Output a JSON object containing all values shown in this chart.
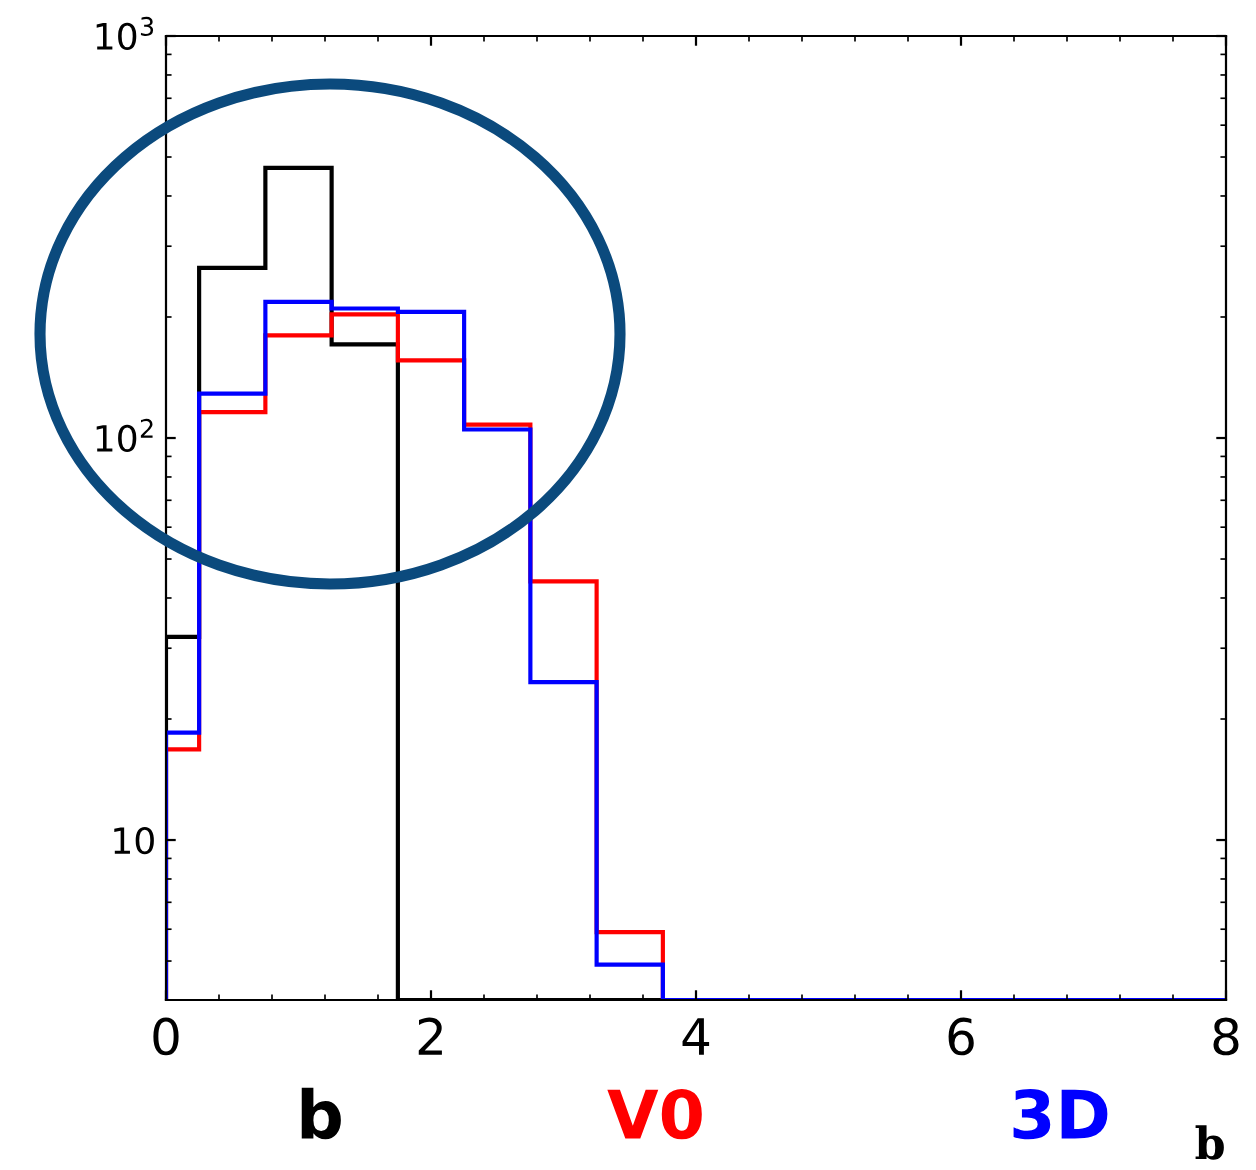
{
  "chart_data": {
    "type": "histogram",
    "xlabel": "b",
    "log": "y",
    "bins": [
      0,
      0.25,
      0.75,
      1.25,
      1.75,
      2.25,
      2.75,
      3.25,
      3.75,
      4.25,
      4.75,
      5.25,
      5.75,
      6.25,
      6.75,
      7.25,
      7.75,
      8
    ],
    "series": [
      {
        "name": "b",
        "color": "#000000",
        "values": [
          32,
          265,
          470,
          171,
          null,
          null,
          null,
          null,
          null,
          null,
          null,
          null,
          null,
          null,
          null,
          null,
          null
        ]
      },
      {
        "name": "V0",
        "color": "#ff0000",
        "values": [
          16.8,
          116,
          180,
          203,
          156,
          108,
          44,
          5.9,
          null,
          null,
          null,
          null,
          null,
          null,
          null,
          null,
          null
        ]
      },
      {
        "name": "3D",
        "color": "#0000ff",
        "values": [
          18.5,
          129,
          218,
          210,
          206,
          105,
          24.7,
          4.9,
          null,
          null,
          null,
          null,
          null,
          null,
          null,
          null,
          null
        ]
      }
    ],
    "xlim": [
      0,
      8
    ],
    "xticks": [
      0,
      2,
      4,
      6,
      8
    ],
    "ylim": [
      4,
      1000
    ],
    "yticks": [
      {
        "value": 10,
        "label": "10"
      },
      {
        "value": 100,
        "label": "10$^{2}$"
      },
      {
        "value": 1000,
        "label": "10$^{3}$"
      }
    ],
    "grid": false
  }
}
